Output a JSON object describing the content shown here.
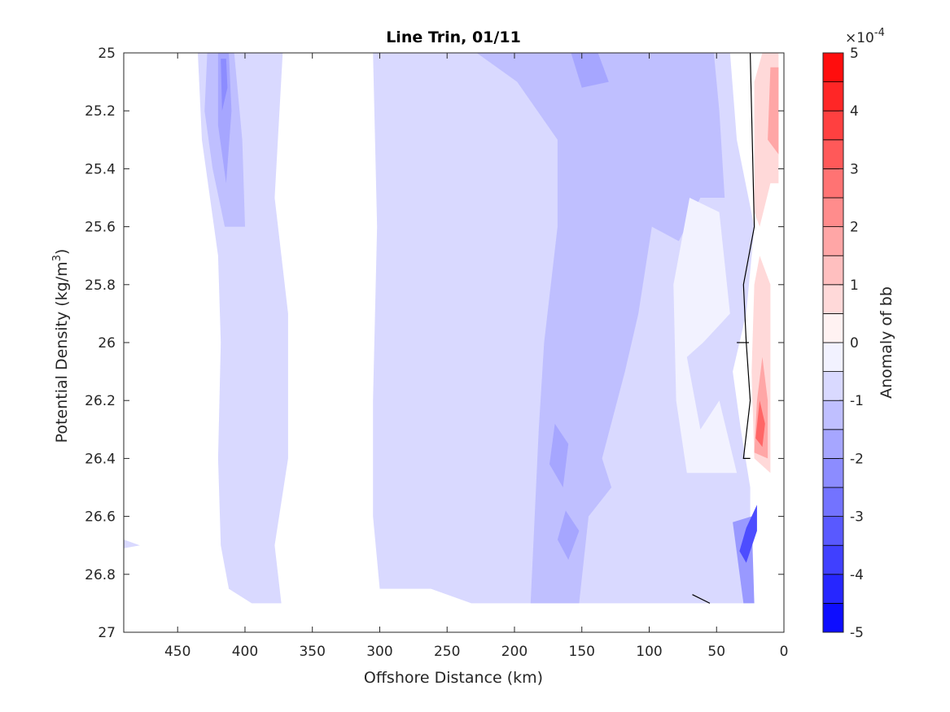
{
  "chart_data": {
    "type": "contour",
    "title": "Line Trin, 01/11",
    "xlabel": "Offshore Distance (km)",
    "ylabel_main": "Potential Density (kg/m",
    "ylabel_sup": "3",
    "ylabel_end": ")",
    "xlim": [
      490,
      0
    ],
    "ylim": [
      25,
      27
    ],
    "x_reversed": true,
    "y_reversed": true,
    "xticks": [
      450,
      400,
      350,
      300,
      250,
      200,
      150,
      100,
      50,
      0
    ],
    "xtick_labels": [
      "450",
      "400",
      "350",
      "300",
      "250",
      "200",
      "150",
      "100",
      "50",
      "0"
    ],
    "yticks": [
      25,
      25.2,
      25.4,
      25.6,
      25.8,
      26,
      26.2,
      26.4,
      26.6,
      26.8,
      27
    ],
    "ytick_labels": [
      "25",
      "25.2",
      "25.4",
      "25.6",
      "25.8",
      "26",
      "26.2",
      "26.4",
      "26.6",
      "26.8",
      "27"
    ],
    "colorbar": {
      "label": "Anomaly of bb",
      "exponent_base": "×10",
      "exponent": "-4",
      "range": [
        -5,
        5
      ],
      "ticks": [
        5,
        4,
        3,
        2,
        1,
        0,
        -1,
        -2,
        -3,
        -4,
        -5
      ],
      "tick_labels": [
        "5",
        "4",
        "3",
        "2",
        "1",
        "0",
        "-1",
        "-2",
        "-3",
        "-4",
        "-5"
      ],
      "levels": [
        -5,
        -4.5,
        -4,
        -3.5,
        -3,
        -2.5,
        -2,
        -1.5,
        -1,
        -0.5,
        0,
        0.5,
        1,
        1.5,
        2,
        2.5,
        3,
        3.5,
        4,
        4.5,
        5
      ],
      "colormap": "blue-white-red",
      "color_low": "#0000ff",
      "color_mid": "#ffffff",
      "color_high": "#ff0000"
    },
    "regions": [
      {
        "level": -0.75,
        "points": [
          [
            478,
            26.7
          ],
          [
            490,
            26.68
          ],
          [
            490,
            26.71
          ]
        ]
      },
      {
        "level": -0.75,
        "points": [
          [
            435,
            25.0
          ],
          [
            372,
            25.0
          ],
          [
            378,
            25.5
          ],
          [
            368,
            25.9
          ],
          [
            368,
            26.4
          ],
          [
            378,
            26.7
          ],
          [
            373,
            26.9
          ],
          [
            395,
            26.9
          ],
          [
            412,
            26.85
          ],
          [
            418,
            26.7
          ],
          [
            420,
            26.4
          ],
          [
            418,
            26.0
          ],
          [
            420,
            25.7
          ],
          [
            432,
            25.3
          ]
        ]
      },
      {
        "level": -0.75,
        "points": [
          [
            305,
            25.0
          ],
          [
            40,
            25.0
          ],
          [
            35,
            25.3
          ],
          [
            22,
            25.6
          ],
          [
            28,
            25.9
          ],
          [
            38,
            26.1
          ],
          [
            32,
            26.3
          ],
          [
            25,
            26.5
          ],
          [
            25,
            26.9
          ],
          [
            232,
            26.9
          ],
          [
            262,
            26.85
          ],
          [
            300,
            26.85
          ],
          [
            305,
            26.6
          ],
          [
            305,
            26.2
          ],
          [
            302,
            25.6
          ]
        ]
      },
      {
        "level": -1.25,
        "points": [
          [
            428,
            25.0
          ],
          [
            408,
            25.0
          ],
          [
            402,
            25.3
          ],
          [
            400,
            25.6
          ],
          [
            415,
            25.6
          ],
          [
            424,
            25.4
          ],
          [
            430,
            25.2
          ]
        ]
      },
      {
        "level": -1.25,
        "points": [
          [
            228,
            25.0
          ],
          [
            52,
            25.0
          ],
          [
            48,
            25.2
          ],
          [
            44,
            25.5
          ],
          [
            62,
            25.5
          ],
          [
            78,
            25.65
          ],
          [
            98,
            25.6
          ],
          [
            108,
            25.9
          ],
          [
            118,
            26.1
          ],
          [
            135,
            26.4
          ],
          [
            128,
            26.5
          ],
          [
            145,
            26.6
          ],
          [
            152,
            26.9
          ],
          [
            188,
            26.9
          ],
          [
            185,
            26.6
          ],
          [
            182,
            26.3
          ],
          [
            178,
            26.0
          ],
          [
            168,
            25.6
          ],
          [
            168,
            25.3
          ],
          [
            198,
            25.1
          ]
        ]
      },
      {
        "level": -1.75,
        "points": [
          [
            420,
            25.0
          ],
          [
            412,
            25.0
          ],
          [
            410,
            25.2
          ],
          [
            414,
            25.45
          ],
          [
            420,
            25.25
          ]
        ]
      },
      {
        "level": -1.75,
        "points": [
          [
            158,
            25.0
          ],
          [
            138,
            25.0
          ],
          [
            130,
            25.1
          ],
          [
            150,
            25.12
          ]
        ]
      },
      {
        "level": -1.75,
        "points": [
          [
            170,
            26.28
          ],
          [
            160,
            26.35
          ],
          [
            164,
            26.5
          ],
          [
            174,
            26.42
          ]
        ]
      },
      {
        "level": -1.75,
        "points": [
          [
            162,
            26.58
          ],
          [
            152,
            26.65
          ],
          [
            160,
            26.75
          ],
          [
            168,
            26.68
          ]
        ]
      },
      {
        "level": -2.25,
        "points": [
          [
            418,
            25.02
          ],
          [
            414,
            25.02
          ],
          [
            413,
            25.12
          ],
          [
            417,
            25.2
          ]
        ]
      },
      {
        "level": -0.25,
        "points": [
          [
            70,
            25.5
          ],
          [
            48,
            25.55
          ],
          [
            40,
            25.9
          ],
          [
            60,
            26.0
          ],
          [
            72,
            26.05
          ],
          [
            62,
            26.3
          ],
          [
            48,
            26.2
          ],
          [
            35,
            26.45
          ],
          [
            72,
            26.45
          ],
          [
            80,
            26.2
          ],
          [
            82,
            25.8
          ]
        ]
      },
      {
        "level": -2.0,
        "points": [
          [
            24,
            26.6
          ],
          [
            38,
            26.62
          ],
          [
            30,
            26.9
          ],
          [
            22,
            26.9
          ]
        ]
      },
      {
        "level": -3.5,
        "points": [
          [
            20,
            26.56
          ],
          [
            28,
            26.64
          ],
          [
            33,
            26.72
          ],
          [
            28,
            26.76
          ],
          [
            20,
            26.65
          ]
        ]
      },
      {
        "level": 0.75,
        "points": [
          [
            16,
            25.0
          ],
          [
            4,
            25.0
          ],
          [
            4,
            25.45
          ],
          [
            10,
            25.45
          ],
          [
            18,
            25.6
          ],
          [
            22,
            25.55
          ],
          [
            22,
            25.1
          ]
        ]
      },
      {
        "level": 1.75,
        "points": [
          [
            10,
            25.05
          ],
          [
            4,
            25.05
          ],
          [
            4,
            25.35
          ],
          [
            12,
            25.3
          ]
        ]
      },
      {
        "level": 0.75,
        "points": [
          [
            18,
            25.7
          ],
          [
            10,
            25.8
          ],
          [
            10,
            26.45
          ],
          [
            22,
            26.4
          ],
          [
            24,
            26.1
          ],
          [
            22,
            25.8
          ]
        ]
      },
      {
        "level": 1.75,
        "points": [
          [
            16,
            26.05
          ],
          [
            12,
            26.2
          ],
          [
            12,
            26.4
          ],
          [
            22,
            26.38
          ],
          [
            20,
            26.2
          ]
        ]
      },
      {
        "level": 3.0,
        "points": [
          [
            18,
            26.2
          ],
          [
            14,
            26.28
          ],
          [
            16,
            26.36
          ],
          [
            21,
            26.33
          ]
        ]
      }
    ],
    "zero_contours": [
      [
        [
          25,
          25.0
        ],
        [
          22,
          25.6
        ],
        [
          30,
          25.8
        ],
        [
          28,
          26.0
        ],
        [
          25,
          26.2
        ],
        [
          30,
          26.4
        ],
        [
          25,
          26.4
        ]
      ],
      [
        [
          35,
          26.0
        ],
        [
          26,
          26.0
        ]
      ],
      [
        [
          68,
          26.87
        ],
        [
          55,
          26.9
        ]
      ]
    ]
  }
}
